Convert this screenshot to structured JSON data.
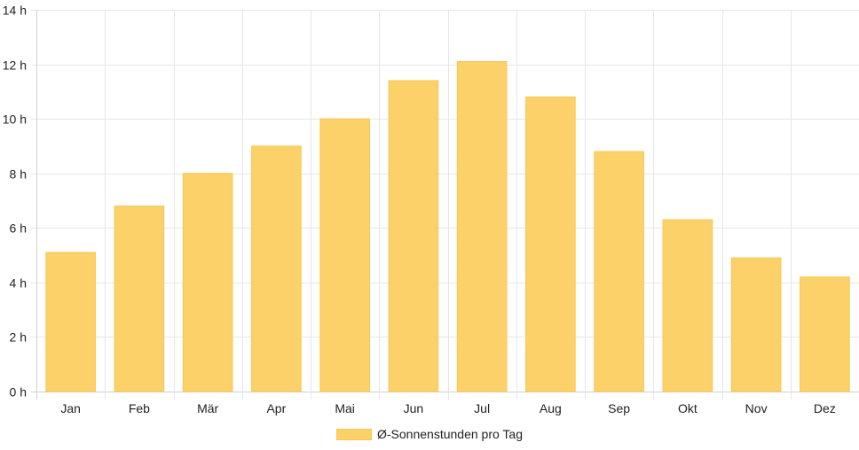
{
  "chart_data": {
    "type": "bar",
    "categories": [
      "Jan",
      "Feb",
      "Mär",
      "Apr",
      "Mai",
      "Jun",
      "Jul",
      "Aug",
      "Sep",
      "Okt",
      "Nov",
      "Dez"
    ],
    "series": [
      {
        "name": "Ø-Sonnenstunden pro Tag",
        "values": [
          5.1,
          6.8,
          8.0,
          9.0,
          10.0,
          11.4,
          12.1,
          10.8,
          8.8,
          6.3,
          4.9,
          4.2
        ]
      }
    ],
    "ylim": [
      0,
      14
    ],
    "yticks": [
      0,
      2,
      4,
      6,
      8,
      10,
      12,
      14
    ],
    "ytick_suffix": " h",
    "grid": true,
    "legend_position": "bottom",
    "colors": {
      "bar_fill": "#fdd16a",
      "bar_stroke": "#f9c74f",
      "grid": "#e6e6e6",
      "axis": "#d0d0d0"
    }
  }
}
